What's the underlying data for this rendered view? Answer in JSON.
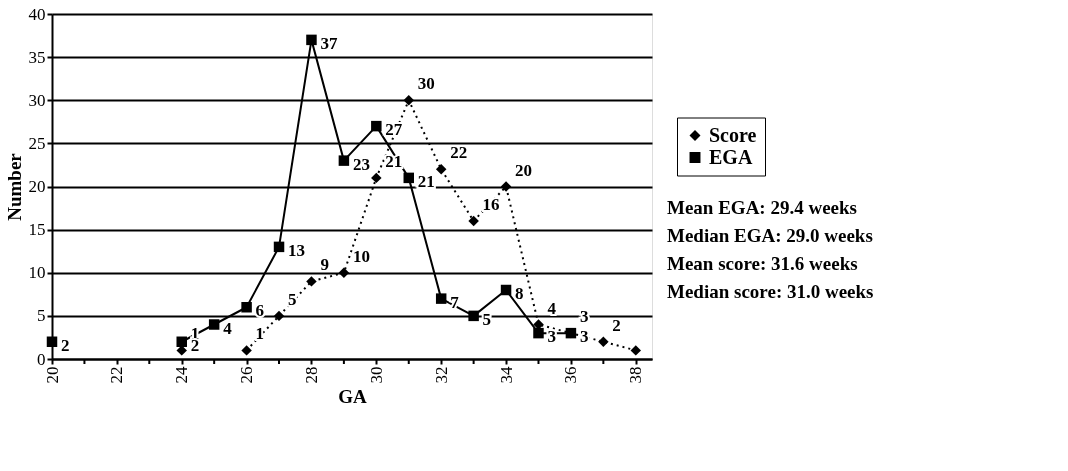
{
  "chart_data": {
    "type": "line",
    "xlabel": "GA",
    "ylabel": "Number",
    "series": [
      {
        "name": "Score",
        "color": "#000000",
        "marker": "diamond",
        "line_style": "dotted",
        "x": [
          24,
          25,
          26,
          27,
          28,
          29,
          30,
          31,
          32,
          33,
          34,
          35,
          36,
          37,
          38
        ],
        "values": [
          1,
          null,
          1,
          5,
          9,
          10,
          21,
          30,
          22,
          16,
          20,
          4,
          3,
          2,
          1
        ],
        "value_labels": [
          "1",
          null,
          "1",
          "5",
          "9",
          "10",
          "21",
          "30",
          "22",
          "16",
          "20",
          "4",
          "3",
          "2",
          null
        ]
      },
      {
        "name": "EGA",
        "color": "#000000",
        "marker": "square",
        "line_style": "solid",
        "x": [
          20,
          21,
          22,
          23,
          24,
          25,
          26,
          27,
          28,
          29,
          30,
          31,
          32,
          33,
          34,
          35,
          36
        ],
        "values": [
          2,
          null,
          null,
          null,
          2,
          4,
          6,
          13,
          37,
          23,
          27,
          21,
          7,
          5,
          8,
          3,
          3
        ],
        "value_labels": [
          "2",
          null,
          null,
          null,
          "2",
          "4",
          "6",
          "13",
          "37",
          "23",
          "27",
          "21",
          "7",
          "5",
          "8",
          "3",
          "3"
        ]
      }
    ],
    "xlim": [
      20,
      38.5
    ],
    "ylim": [
      0,
      40
    ],
    "xticks": [
      20,
      {
        "value": 21,
        "label": null
      },
      22,
      {
        "value": 23,
        "label": null
      },
      24,
      {
        "value": 25,
        "label": null
      },
      26,
      {
        "value": 27,
        "label": null
      },
      28,
      {
        "value": 29,
        "label": null
      },
      30,
      {
        "value": 31,
        "label": null
      },
      32,
      {
        "value": 33,
        "label": null
      },
      34,
      {
        "value": 35,
        "label": null
      },
      36,
      {
        "value": 37,
        "label": null
      },
      38
    ],
    "yticks": [
      0,
      5,
      10,
      15,
      20,
      25,
      30,
      35,
      40
    ],
    "grid": "y",
    "legend": "right",
    "annotations": [
      "Mean EGA: 29.4 weeks",
      "Median EGA: 29.0 weeks",
      "Mean score: 31.6 weeks",
      "Median score: 31.0 weeks"
    ]
  }
}
